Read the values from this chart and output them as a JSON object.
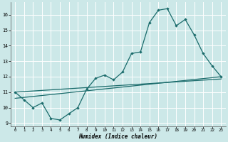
{
  "xlabel": "Humidex (Indice chaleur)",
  "bg_color": "#cce8e8",
  "grid_color": "#ffffff",
  "line_color": "#1a6b6b",
  "xmin": -0.5,
  "xmax": 23.5,
  "ymin": 8.8,
  "ymax": 16.8,
  "yticks": [
    9,
    10,
    11,
    12,
    13,
    14,
    15,
    16
  ],
  "xticks": [
    0,
    1,
    2,
    3,
    4,
    5,
    6,
    7,
    8,
    9,
    10,
    11,
    12,
    13,
    14,
    15,
    16,
    17,
    18,
    19,
    20,
    21,
    22,
    23
  ],
  "series_main": {
    "x": [
      0,
      1,
      2,
      3,
      4,
      5,
      6,
      7,
      8,
      9,
      10,
      11,
      12,
      13,
      14,
      15,
      16,
      17,
      18,
      19,
      20,
      21,
      22,
      23
    ],
    "y": [
      11.0,
      10.5,
      10.0,
      10.3,
      9.3,
      9.2,
      9.6,
      10.0,
      11.2,
      11.9,
      12.1,
      11.8,
      12.3,
      13.5,
      13.6,
      15.5,
      16.3,
      16.4,
      15.3,
      15.7,
      14.7,
      13.5,
      12.7,
      12.0
    ]
  },
  "trend1": {
    "x": [
      0,
      23
    ],
    "y": [
      11.0,
      11.85
    ]
  },
  "trend2": {
    "x": [
      0,
      23
    ],
    "y": [
      10.6,
      12.0
    ]
  }
}
